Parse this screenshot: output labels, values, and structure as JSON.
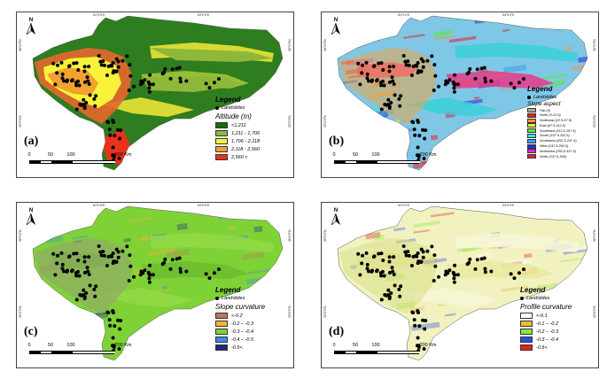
{
  "coordinates": {
    "top": [
      "51°0'0\"E",
      "54°0'0\"E"
    ],
    "left": [
      "36°0'0\"N",
      "33°0'0\"N"
    ]
  },
  "scale": {
    "ticks": [
      "0",
      "50",
      "100",
      "200 Km"
    ]
  },
  "north_label": "N",
  "panels": [
    {
      "id": "a",
      "label": "(a)",
      "legend_title": "Legend",
      "points_label": "Landslides",
      "subtitle": "Altitude (m)",
      "colors": {
        "fill": "#2e7d1f",
        "mid": "#a8c93a",
        "hi": "#f5ea3a",
        "top": "#e8672c"
      },
      "classes": [
        {
          "label": "<1,211",
          "color": "#1a6b13"
        },
        {
          "label": "1,211 - 1,706",
          "color": "#8fb83a"
        },
        {
          "label": "1,706 - 2,118",
          "color": "#f7f23a"
        },
        {
          "label": "2,118 - 2,560",
          "color": "#f2a22f"
        },
        {
          "label": "2,560 <",
          "color": "#e8321e"
        }
      ]
    },
    {
      "id": "b",
      "label": "(b)",
      "legend_title": "Legend",
      "points_label": "Landslides",
      "subtitle": "Slope aspect",
      "colors": {
        "fill": "#7fc7e6",
        "mid": "#e73a8a",
        "hi": "#3ad0d8",
        "top": "#f3a33a"
      },
      "classes": [
        {
          "label": "Flat  (0)",
          "color": "#a9a9a9"
        },
        {
          "label": "North (0-22.5)",
          "color": "#e8201e"
        },
        {
          "label": "Northeast (22.5-67.5)",
          "color": "#f29a2e"
        },
        {
          "label": "East (67.5-112.5)",
          "color": "#f2ee3a"
        },
        {
          "label": "Southeast (112.5-157.5)",
          "color": "#5ee63a"
        },
        {
          "label": "South (157.5-202.5)",
          "color": "#3ae6e6"
        },
        {
          "label": "Southwest (202.5-247.5)",
          "color": "#3a9ee6"
        },
        {
          "label": "West (247.5-292.5)",
          "color": "#2a2adc"
        },
        {
          "label": "Northwest (292.5-337.5)",
          "color": "#d82adc"
        },
        {
          "label": "North (337.5-360)",
          "color": "#e81e3a"
        }
      ]
    },
    {
      "id": "c",
      "label": "(c)",
      "legend_title": "Legend",
      "points_label": "Landslides",
      "subtitle": "Slope curvature",
      "colors": {
        "fill": "#7fd236",
        "mid": "#6cbd2e",
        "hi": "#93da45",
        "top": "#9a9a7a"
      },
      "classes": [
        {
          "label": "<-0.2",
          "color": "#b87a5a"
        },
        {
          "label": "-0.2 – -0.3",
          "color": "#f0b63a"
        },
        {
          "label": "-0.3 – -0.4",
          "color": "#7fd236"
        },
        {
          "label": "-0.4 – -0.5",
          "color": "#3a8ce6"
        },
        {
          "label": "-0.5<",
          "color": "#1e2a7a"
        }
      ]
    },
    {
      "id": "d",
      "label": "(d)",
      "legend_title": "Legend",
      "points_label": "Landslides",
      "subtitle": "Profile curvature",
      "colors": {
        "fill": "#f2f2c0",
        "mid": "#e9eaa0",
        "hi": "#f7f7d8",
        "top": "#d6dc80"
      },
      "classes": [
        {
          "label": "<-0.1",
          "color": "#ffffff"
        },
        {
          "label": "-0.1 – -0.2",
          "color": "#f2ba3a"
        },
        {
          "label": "-0.2 – -0.3",
          "color": "#8ee63a"
        },
        {
          "label": "-0.3 – -0.4",
          "color": "#2a4ee6"
        },
        {
          "label": "-0.5<",
          "color": "#e81e1e"
        }
      ]
    }
  ]
}
